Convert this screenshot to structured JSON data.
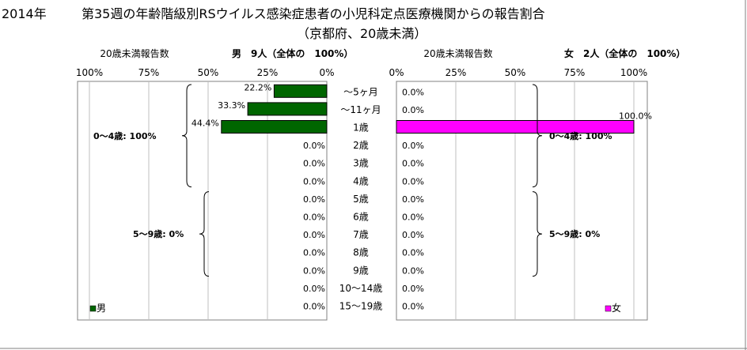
{
  "title": {
    "year": "2014年",
    "main": "第35週の年齢階級別RSウイルス感染症患者の小児科定点医療機関からの報告割合",
    "sub": "（京都府、20歳未満）"
  },
  "colors": {
    "male": "#006600",
    "female": "#ff00ff",
    "grid": "#bfbfbf"
  },
  "chart_data": [
    {
      "type": "bar",
      "orientation": "horizontal",
      "direction": "right-to-left",
      "series_name": "男",
      "header_left": "20歳未満報告数",
      "header_right": "男　9人（全体の　100%）",
      "xlim": [
        0,
        100
      ],
      "ticks": [
        "100%",
        "75%",
        "50%",
        "25%",
        "0%"
      ],
      "categories": [
        "～5ヶ月",
        "～11ヶ月",
        "1歳",
        "2歳",
        "3歳",
        "4歳",
        "5歳",
        "6歳",
        "7歳",
        "8歳",
        "9歳",
        "10～14歳",
        "15～19歳"
      ],
      "values": [
        22.2,
        33.3,
        44.4,
        0,
        0,
        0,
        0,
        0,
        0,
        0,
        0,
        0,
        0
      ],
      "labels": [
        "22.2%",
        "33.3%",
        "44.4%",
        "0.0%",
        "0.0%",
        "0.0%",
        "0.0%",
        "0.0%",
        "0.0%",
        "0.0%",
        "0.0%",
        "0.0%",
        "0.0%"
      ],
      "groups": [
        {
          "label": "0～4歳: 100%",
          "from": 0,
          "to": 5
        },
        {
          "label": "5～9歳: 0%",
          "from": 6,
          "to": 10
        }
      ],
      "legend": "男",
      "grid": true
    },
    {
      "type": "bar",
      "orientation": "horizontal",
      "direction": "left-to-right",
      "series_name": "女",
      "header_left": "20歳未満報告数",
      "header_right": "女　2人（全体の　100%）",
      "xlim": [
        0,
        100
      ],
      "ticks": [
        "0%",
        "25%",
        "50%",
        "75%",
        "100%"
      ],
      "categories": [
        "～5ヶ月",
        "～11ヶ月",
        "1歳",
        "2歳",
        "3歳",
        "4歳",
        "5歳",
        "6歳",
        "7歳",
        "8歳",
        "9歳",
        "10～14歳",
        "15～19歳"
      ],
      "values": [
        0,
        0,
        100,
        0,
        0,
        0,
        0,
        0,
        0,
        0,
        0,
        0,
        0
      ],
      "labels": [
        "0.0%",
        "0.0%",
        "100.0%",
        "0.0%",
        "0.0%",
        "0.0%",
        "0.0%",
        "0.0%",
        "0.0%",
        "0.0%",
        "0.0%",
        "0.0%",
        "0.0%"
      ],
      "groups": [
        {
          "label": "0～4歳: 100%",
          "from": 0,
          "to": 5
        },
        {
          "label": "5～9歳: 0%",
          "from": 6,
          "to": 10
        }
      ],
      "legend": "女",
      "grid": true
    }
  ]
}
